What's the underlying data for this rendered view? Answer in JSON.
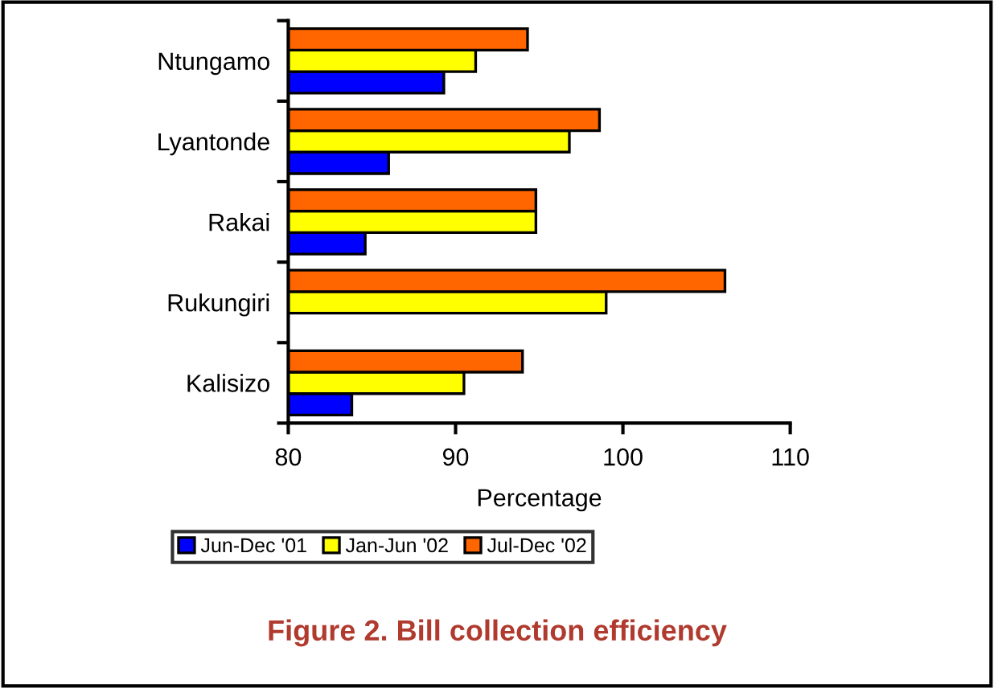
{
  "chart_data": {
    "type": "bar",
    "orientation": "horizontal",
    "title": "Figure 2. Bill collection efficiency",
    "xlabel": "Percentage",
    "categories": [
      "Ntungamo",
      "Lyantonde",
      "Rakai",
      "Rukungiri",
      "Kalisizo"
    ],
    "series": [
      {
        "name": "Jun-Dec '01",
        "color": "#0000ff",
        "values": [
          89.3,
          86.0,
          84.6,
          null,
          83.8
        ]
      },
      {
        "name": "Jan-Jun '02",
        "color": "#ffff00",
        "values": [
          91.2,
          96.8,
          94.8,
          99.0,
          90.5
        ]
      },
      {
        "name": "Jul-Dec '02",
        "color": "#ff6600",
        "values": [
          94.3,
          98.6,
          94.8,
          106.1,
          94.0
        ]
      }
    ],
    "xlim": [
      80,
      110
    ],
    "xticks": [
      80,
      90,
      100,
      110
    ],
    "grid": false,
    "legend": "bottom"
  }
}
